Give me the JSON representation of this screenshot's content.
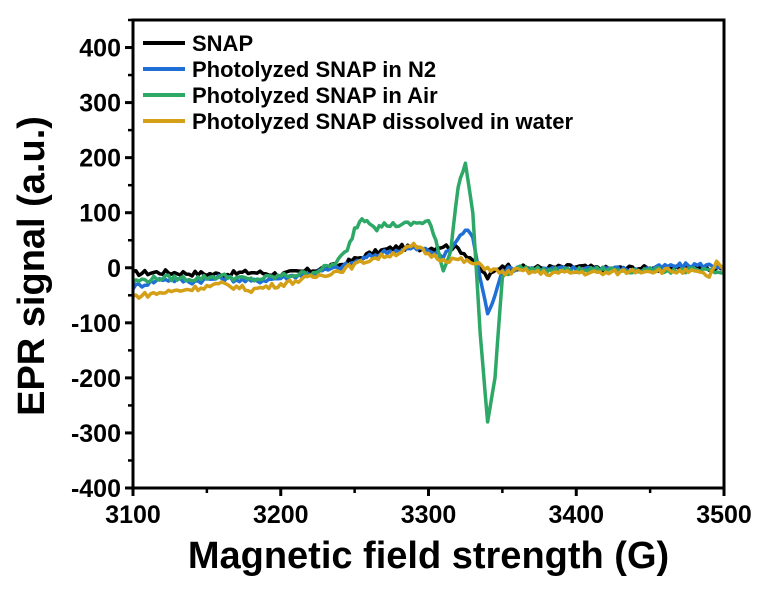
{
  "chart_data": {
    "type": "line",
    "title": "",
    "xlabel": "Magnetic field strength (G)",
    "ylabel": "EPR signal (a.u.)",
    "xlim": [
      3100,
      3500
    ],
    "ylim": [
      -400,
      450
    ],
    "xticks": [
      3100,
      3200,
      3300,
      3400,
      3500
    ],
    "xtick_labels": [
      "3100",
      "3200",
      "3300",
      "3400",
      "3500"
    ],
    "yticks": [
      -400,
      -300,
      -200,
      -100,
      0,
      100,
      200,
      300,
      400
    ],
    "ytick_labels": [
      "-400",
      "-300",
      "-200",
      "-100",
      "0",
      "100",
      "200",
      "300",
      "400"
    ],
    "grid": false,
    "legend_position": "top-left",
    "series": [
      {
        "name": "SNAP",
        "color": "#000000",
        "x": [
          3100,
          3120,
          3140,
          3160,
          3180,
          3200,
          3220,
          3240,
          3250,
          3260,
          3270,
          3280,
          3290,
          3300,
          3310,
          3320,
          3330,
          3340,
          3350,
          3360,
          3380,
          3400,
          3420,
          3440,
          3460,
          3480,
          3500
        ],
        "y": [
          -10,
          -8,
          -10,
          -12,
          -8,
          -12,
          -5,
          5,
          15,
          25,
          32,
          38,
          35,
          35,
          40,
          35,
          15,
          -18,
          5,
          0,
          0,
          2,
          -2,
          0,
          -3,
          0,
          -2
        ]
      },
      {
        "name": "Photolyzed SNAP in N2",
        "color": "#1f6fd6",
        "x": [
          3100,
          3120,
          3140,
          3160,
          3180,
          3200,
          3220,
          3240,
          3250,
          3260,
          3270,
          3280,
          3290,
          3300,
          3310,
          3318,
          3325,
          3330,
          3335,
          3340,
          3345,
          3350,
          3360,
          3380,
          3400,
          3420,
          3440,
          3460,
          3480,
          3500
        ],
        "y": [
          -35,
          -20,
          -25,
          -18,
          -25,
          -18,
          -10,
          0,
          10,
          20,
          28,
          32,
          35,
          32,
          20,
          45,
          70,
          55,
          -20,
          -80,
          -50,
          -5,
          0,
          -3,
          -2,
          0,
          -5,
          2,
          5,
          3
        ]
      },
      {
        "name": "Photolyzed SNAP in Air",
        "color": "#2ea866",
        "x": [
          3100,
          3120,
          3140,
          3160,
          3180,
          3200,
          3220,
          3235,
          3245,
          3250,
          3255,
          3260,
          3265,
          3270,
          3280,
          3290,
          3300,
          3305,
          3310,
          3315,
          3320,
          3325,
          3330,
          3335,
          3340,
          3345,
          3350,
          3360,
          3380,
          3400,
          3420,
          3440,
          3460,
          3480,
          3500
        ],
        "y": [
          -25,
          -18,
          -20,
          -15,
          -22,
          -15,
          -10,
          5,
          30,
          70,
          90,
          85,
          72,
          78,
          78,
          80,
          85,
          50,
          -10,
          30,
          150,
          190,
          100,
          -120,
          -280,
          -200,
          -15,
          0,
          -5,
          -5,
          -3,
          -5,
          -5,
          -5,
          -10
        ]
      },
      {
        "name": "Photolyzed SNAP dissolved in water",
        "color": "#d4a017",
        "x": [
          3100,
          3120,
          3140,
          3160,
          3180,
          3200,
          3220,
          3240,
          3260,
          3280,
          3290,
          3300,
          3310,
          3320,
          3330,
          3340,
          3350,
          3360,
          3380,
          3400,
          3420,
          3440,
          3460,
          3480,
          3490,
          3495,
          3500
        ],
        "y": [
          -52,
          -45,
          -38,
          -30,
          -40,
          -30,
          -18,
          -5,
          15,
          28,
          40,
          25,
          15,
          15,
          8,
          0,
          -10,
          -5,
          -10,
          -8,
          -10,
          -5,
          -5,
          -8,
          -15,
          8,
          -5
        ]
      }
    ]
  }
}
